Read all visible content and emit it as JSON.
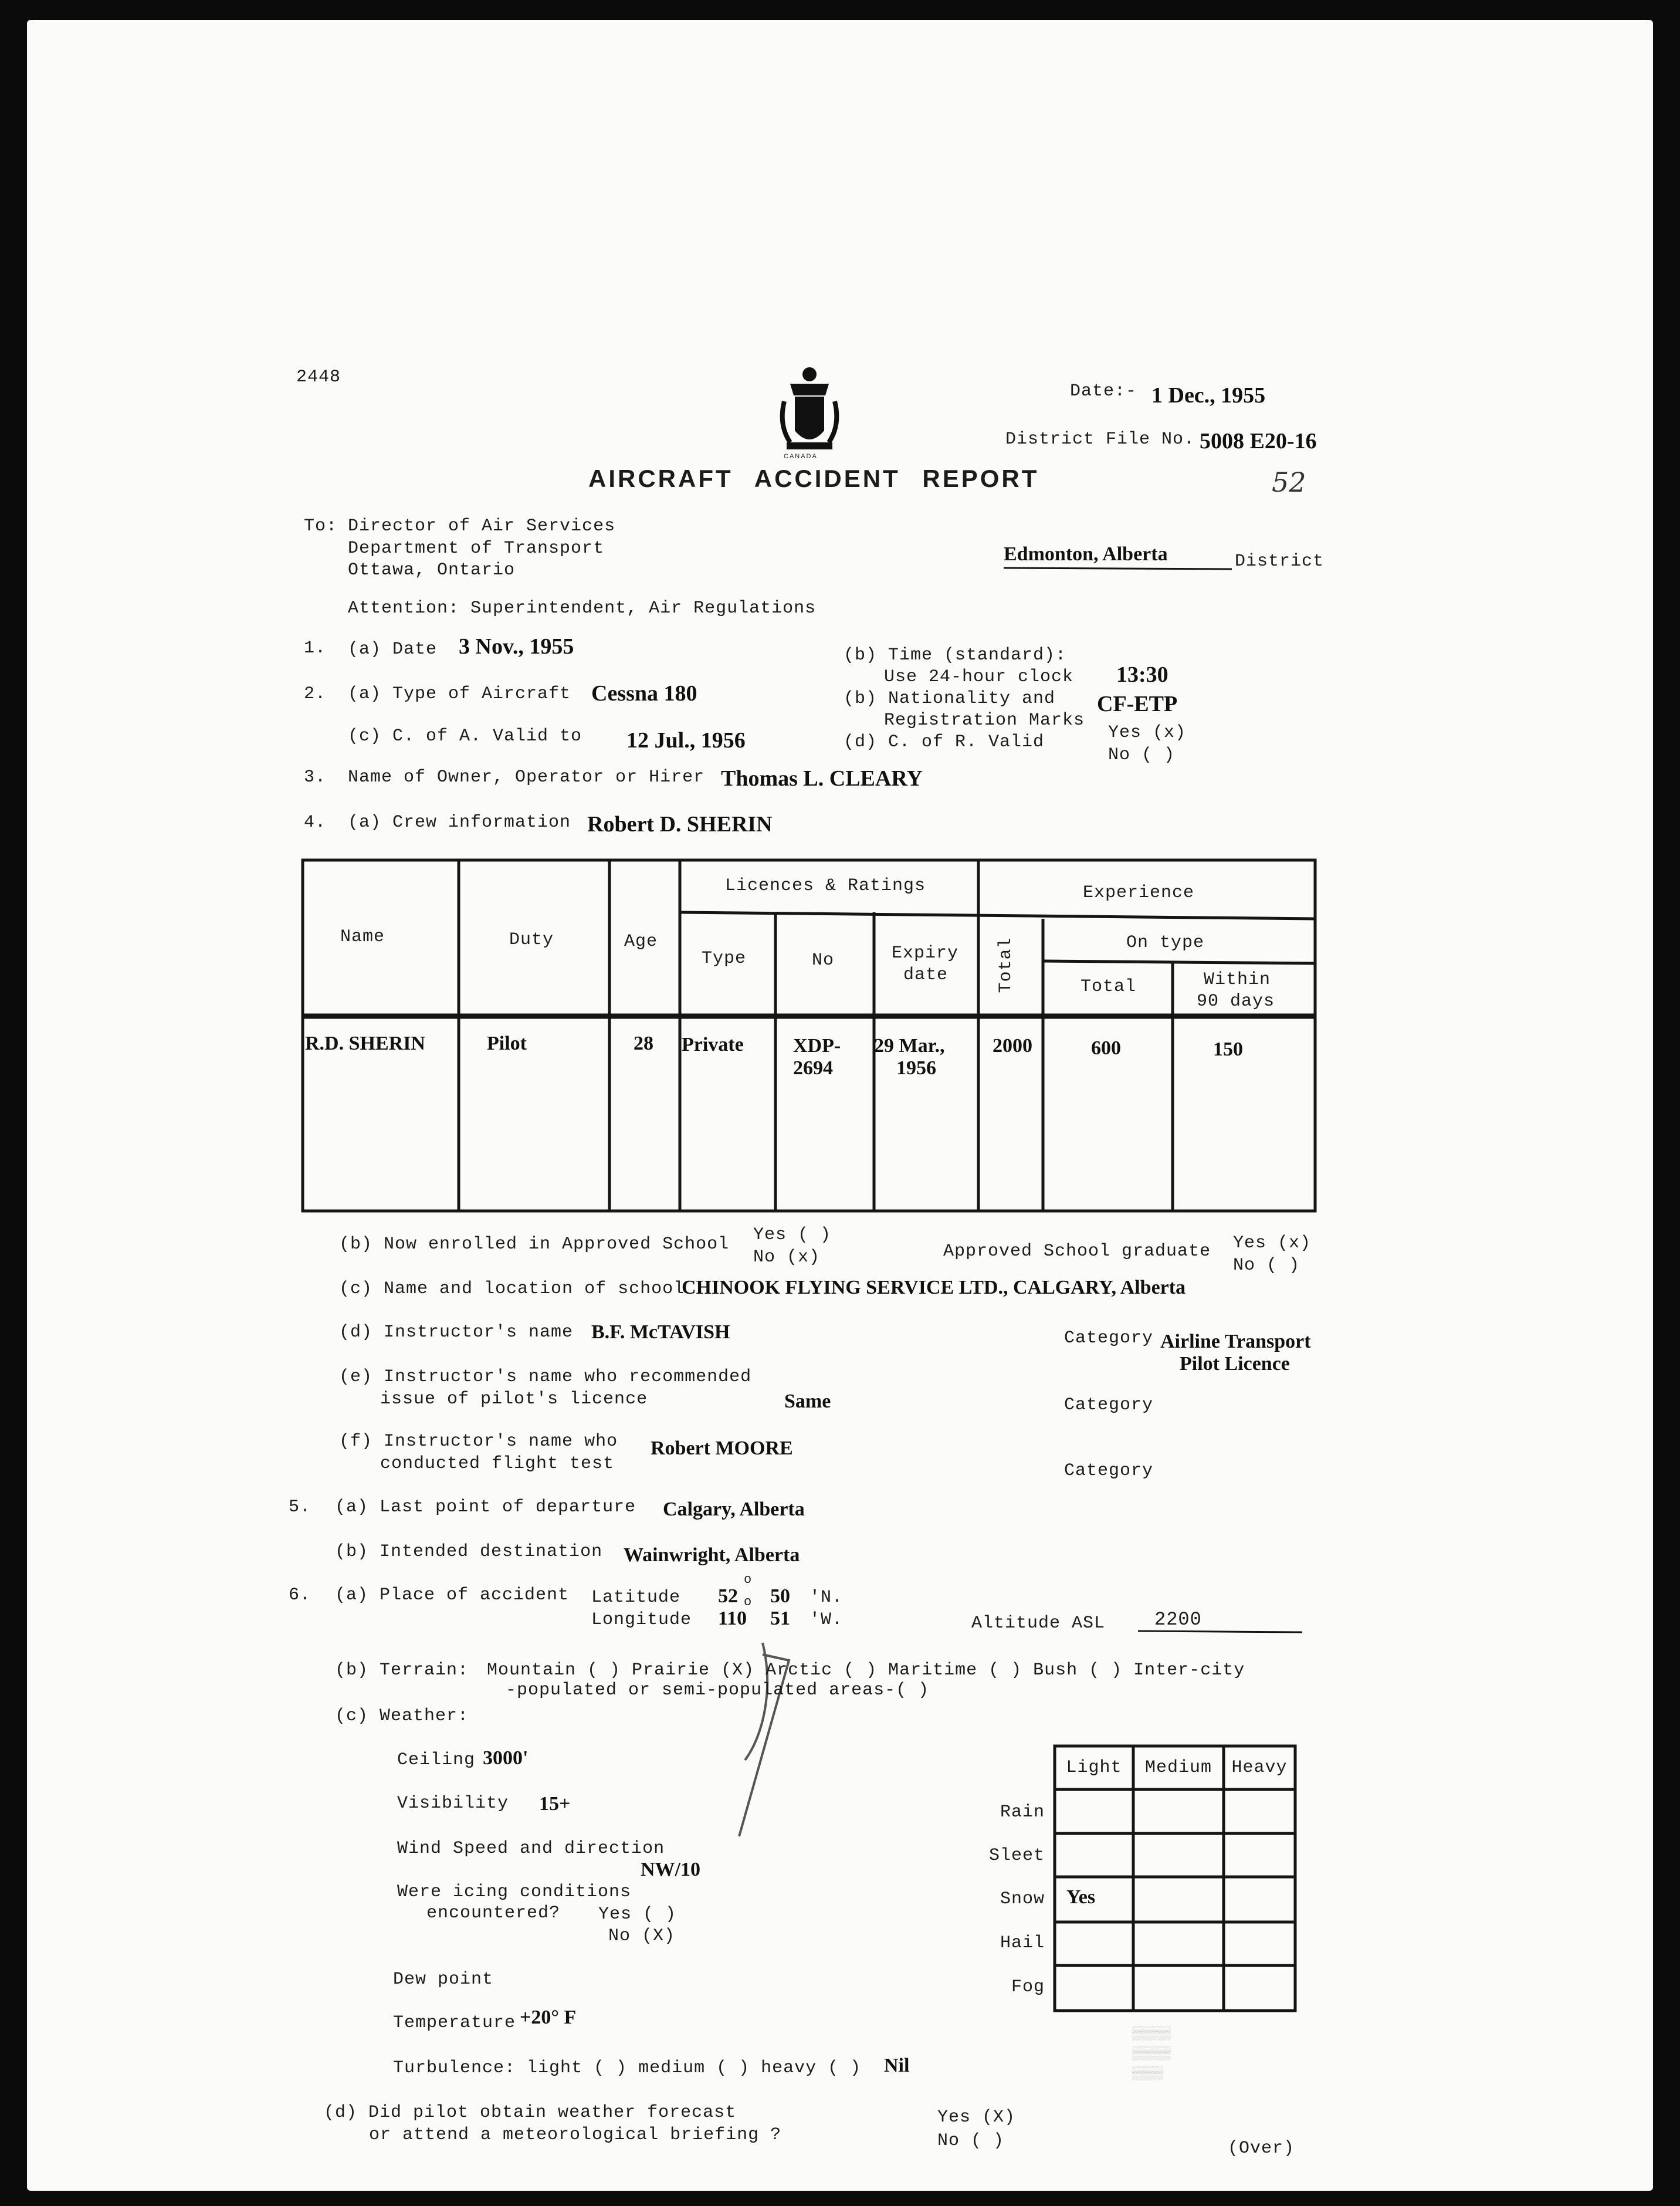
{
  "form_number": "2448",
  "crest_label": "CANADA",
  "header": {
    "date_label": "Date:-",
    "date_value": "1 Dec., 1955",
    "file_label": "District File No.",
    "file_value": "5008 E20-16",
    "title": "AIRCRAFT ACCIDENT REPORT",
    "handwritten_note": "52"
  },
  "address": {
    "to_label": "To:",
    "lines": [
      "Director of Air Services",
      "Department of Transport",
      "Ottawa, Ontario"
    ],
    "attention": "Attention: Superintendent, Air Regulations",
    "district_value": "Edmonton, Alberta",
    "district_label": "District"
  },
  "s1": {
    "num": "1.",
    "date_label": "(a) Date",
    "date_value": "3 Nov., 1955",
    "time_label": "(b) Time (standard):",
    "time_sub": "Use 24-hour clock",
    "time_value": "13:30"
  },
  "s2": {
    "num": "2.",
    "type_label": "(a) Type of Aircraft",
    "type_value": "Cessna 180",
    "nat_label": "(b) Nationality and",
    "nat_sub": "Registration Marks",
    "nat_value": "CF-ETP",
    "ca_label": "(c) C. of A. Valid to",
    "ca_value": "12 Jul., 1956",
    "cr_label": "(d) C. of R. Valid",
    "cr_yes": "Yes (x)",
    "cr_no": "No  ( )"
  },
  "s3": {
    "num": "3.",
    "label": "Name of Owner, Operator or Hirer",
    "value": "Thomas L. CLEARY"
  },
  "s4": {
    "num": "4.",
    "crew_label": "(a) Crew information",
    "crew_value": "Robert D. SHERIN",
    "table": {
      "headers": {
        "name": "Name",
        "duty": "Duty",
        "age": "Age",
        "licences": "Licences & Ratings",
        "type": "Type",
        "no": "No",
        "expiry": [
          "Expiry",
          "date"
        ],
        "experience": "Experience",
        "total": "Total",
        "on_type": "On type",
        "on_type_total": "Total",
        "within": [
          "Within",
          "90 days"
        ]
      },
      "rows": [
        {
          "name": "R.D. SHERIN",
          "duty": "Pilot",
          "age": "28",
          "type": "Private",
          "no": [
            "XDP-",
            "2694"
          ],
          "expiry": [
            "29 Mar.,",
            "1956"
          ],
          "total": "2000",
          "on_type_total": "600",
          "within": "150"
        }
      ]
    },
    "b_label": "(b) Now enrolled in Approved School",
    "b_yes": "Yes ( )",
    "b_no": "No  (x)",
    "grad_label": "Approved School graduate",
    "grad_yes": "Yes (x)",
    "grad_no": "No  ( )",
    "c_label": "(c) Name and location of school",
    "c_value": "CHINOOK FLYING SERVICE LTD., CALGARY, Alberta",
    "d_label": "(d) Instructor's name",
    "d_value": "B.F. McTAVISH",
    "d_cat_label": "Category",
    "d_cat_value": [
      "Airline Transport",
      "Pilot Licence"
    ],
    "e_label": [
      "(e) Instructor's name who recommended",
      "issue of pilot's licence"
    ],
    "e_value": "Same",
    "e_cat_label": "Category",
    "f_label": [
      "(f) Instructor's name who",
      "conducted flight test"
    ],
    "f_value": "Robert MOORE",
    "f_cat_label": "Category"
  },
  "s5": {
    "num": "5.",
    "a_label": "(a) Last point of departure",
    "a_value": "Calgary, Alberta",
    "b_label": "(b) Intended destination",
    "b_value": "Wainwright, Alberta"
  },
  "s6": {
    "num": "6.",
    "a_label": "(a) Place of accident",
    "lat_label": "Latitude",
    "lat_deg": "52",
    "lat_min": "50",
    "lat_dir": "'N.",
    "lon_label": "Longitude",
    "lon_deg": "110",
    "lon_min": "51",
    "lon_dir": "'W.",
    "degree_symbol": "o",
    "alt_label": "Altitude ASL",
    "alt_value": "2200",
    "terrain_label": "(b) Terrain:",
    "terrain_line1": "Mountain ( ) Prairie (X) Arctic ( ) Maritime ( ) Bush ( ) Inter-city",
    "terrain_line2": "-populated or semi-populated areas-( )",
    "weather_label": "(c) Weather:",
    "ceiling_label": "Ceiling",
    "ceiling_value": "3000'",
    "visibility_label": "Visibility",
    "visibility_value": "15+",
    "wind_label": "Wind Speed and direction",
    "wind_value": "NW/10",
    "icing_label": [
      "Were icing conditions",
      "encountered?"
    ],
    "icing_yes": "Yes ( )",
    "icing_no": "No (X)",
    "dew_label": "Dew point",
    "temp_label": "Temperature",
    "temp_value": "+20° F",
    "turb_label": "Turbulence: light ( ) medium ( ) heavy ( )",
    "turb_value": "Nil",
    "precip": {
      "columns": [
        "Light",
        "Medium",
        "Heavy"
      ],
      "rows": [
        {
          "label": "Rain",
          "light": "",
          "medium": "",
          "heavy": ""
        },
        {
          "label": "Sleet",
          "light": "",
          "medium": "",
          "heavy": ""
        },
        {
          "label": "Snow",
          "light": "Yes",
          "medium": "",
          "heavy": ""
        },
        {
          "label": "Hail",
          "light": "",
          "medium": "",
          "heavy": ""
        },
        {
          "label": "Fog",
          "light": "",
          "medium": "",
          "heavy": ""
        }
      ]
    },
    "d_label": [
      "(d) Did pilot obtain weather forecast",
      "or attend a meteorological briefing ?"
    ],
    "d_yes": "Yes (X)",
    "d_no": "No  ( )"
  },
  "footer": {
    "over": "(Over)"
  }
}
